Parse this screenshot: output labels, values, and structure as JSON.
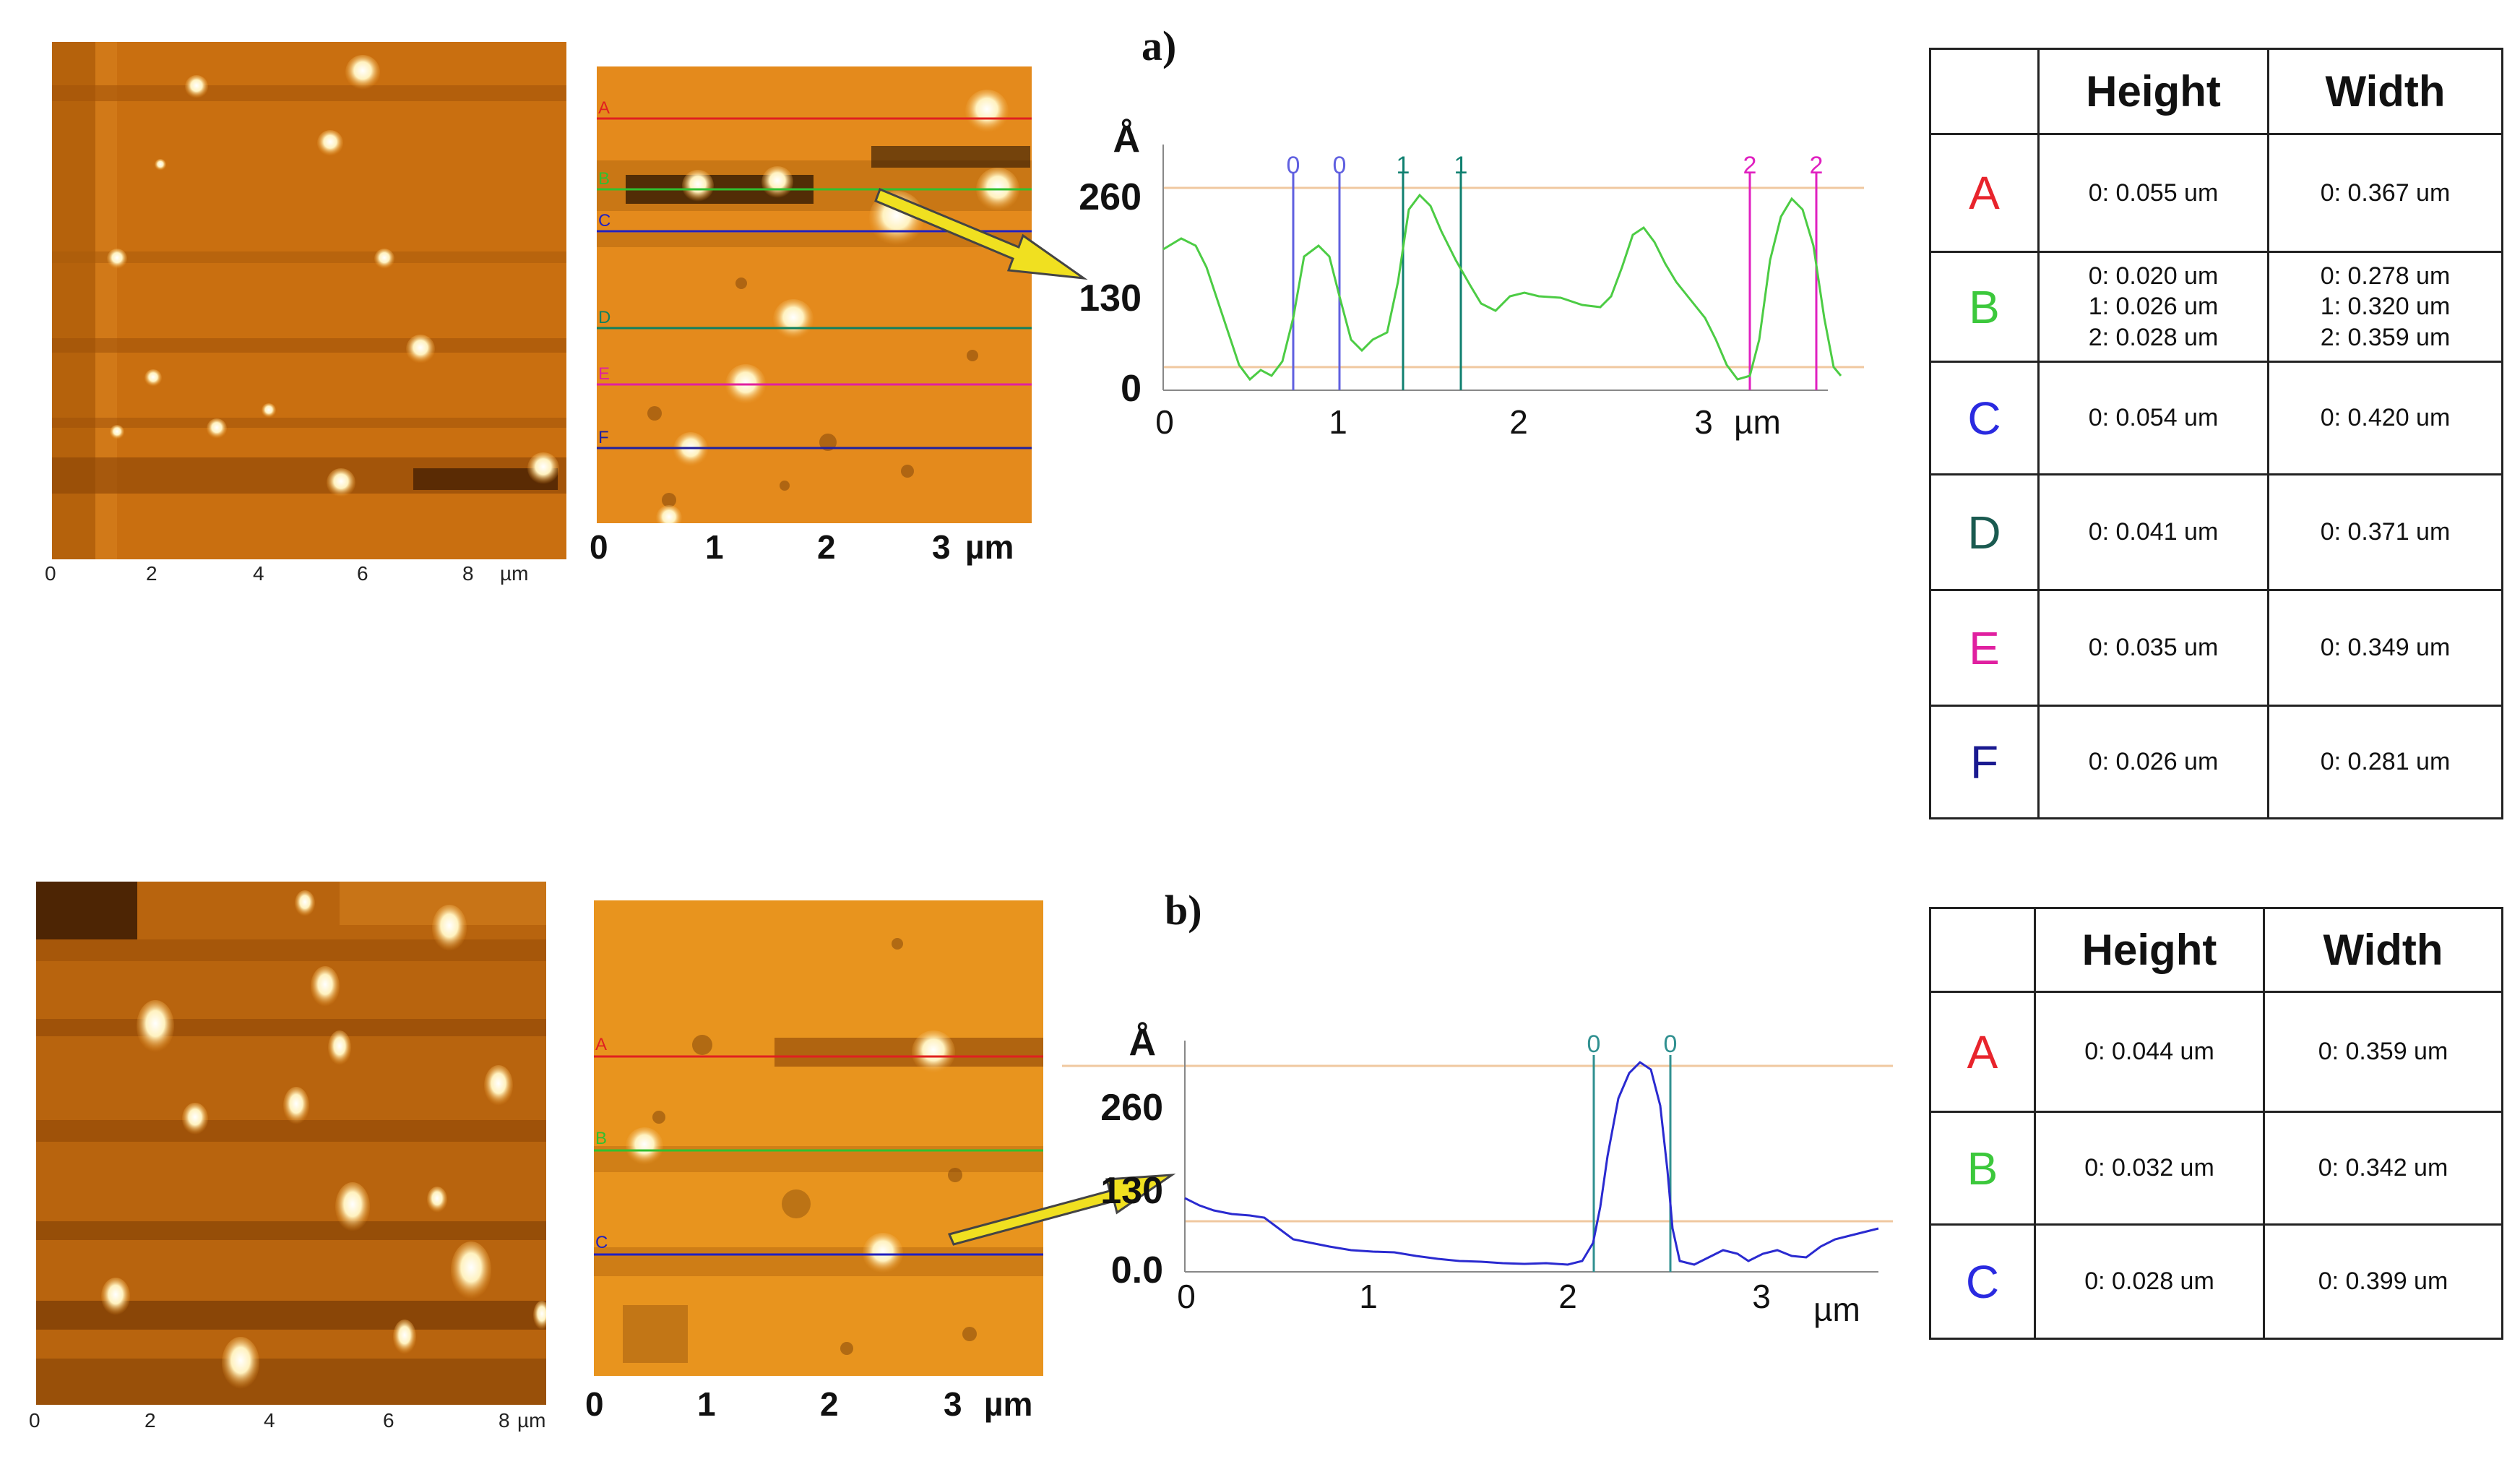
{
  "panels": [
    {
      "id": "a",
      "label": "a)",
      "large_image": {
        "axis_ticks": [
          "0",
          "2",
          "4",
          "6",
          "8"
        ],
        "unit": "µm"
      },
      "small_image": {
        "axis_ticks": [
          "0",
          "1",
          "2",
          "3"
        ],
        "unit": "µm",
        "line_labels": [
          "A",
          "B",
          "C",
          "D",
          "E",
          "F"
        ]
      },
      "profile": {
        "color": "#4ccc44",
        "y_unit": "Å",
        "y_ticks": [
          "260",
          "130",
          "0"
        ],
        "x_ticks": [
          "0",
          "1",
          "2",
          "3"
        ],
        "x_unit": "µm",
        "markers": [
          "0",
          "0",
          "1",
          "1",
          "2",
          "2"
        ]
      },
      "table": {
        "headers": [
          "",
          "Height",
          "Width"
        ],
        "rows": [
          {
            "label": "A",
            "color": "#e8242c",
            "height": [
              "0: 0.055 um"
            ],
            "width": [
              "0: 0.367 um"
            ]
          },
          {
            "label": "B",
            "color": "#3cc83c",
            "height": [
              "0: 0.020 um",
              "1: 0.026 um",
              "2: 0.028 um"
            ],
            "width": [
              "0: 0.278 um",
              "1: 0.320 um",
              "2: 0.359 um"
            ]
          },
          {
            "label": "C",
            "color": "#2a2ae0",
            "height": [
              "0: 0.054 um"
            ],
            "width": [
              "0: 0.420 um"
            ]
          },
          {
            "label": "D",
            "color": "#1a5a50",
            "height": [
              "0: 0.041 um"
            ],
            "width": [
              "0: 0.371 um"
            ]
          },
          {
            "label": "E",
            "color": "#e020a0",
            "height": [
              "0: 0.035 um"
            ],
            "width": [
              "0: 0.349 um"
            ]
          },
          {
            "label": "F",
            "color": "#1a1a90",
            "height": [
              "0: 0.026 um"
            ],
            "width": [
              "0: 0.281 um"
            ]
          }
        ]
      }
    },
    {
      "id": "b",
      "label": "b)",
      "large_image": {
        "axis_ticks": [
          "0",
          "2",
          "4",
          "6",
          "8"
        ],
        "unit": "µm"
      },
      "small_image": {
        "axis_ticks": [
          "0",
          "1",
          "2",
          "3"
        ],
        "unit": "µm",
        "line_labels": [
          "A",
          "B",
          "C"
        ]
      },
      "profile": {
        "color": "#2a2ad0",
        "y_unit": "Å",
        "y_ticks": [
          "260",
          "130",
          "0.0"
        ],
        "x_ticks": [
          "0",
          "1",
          "2",
          "3"
        ],
        "x_unit": "µm",
        "markers": [
          "0",
          "0"
        ]
      },
      "table": {
        "headers": [
          "",
          "Height",
          "Width"
        ],
        "rows": [
          {
            "label": "A",
            "color": "#e8242c",
            "height": [
              "0: 0.044 um"
            ],
            "width": [
              "0: 0.359 um"
            ]
          },
          {
            "label": "B",
            "color": "#3cc83c",
            "height": [
              "0: 0.032 um"
            ],
            "width": [
              "0: 0.342 um"
            ]
          },
          {
            "label": "C",
            "color": "#2a2ae0",
            "height": [
              "0: 0.028 um"
            ],
            "width": [
              "0: 0.399 um"
            ]
          }
        ]
      }
    }
  ]
}
